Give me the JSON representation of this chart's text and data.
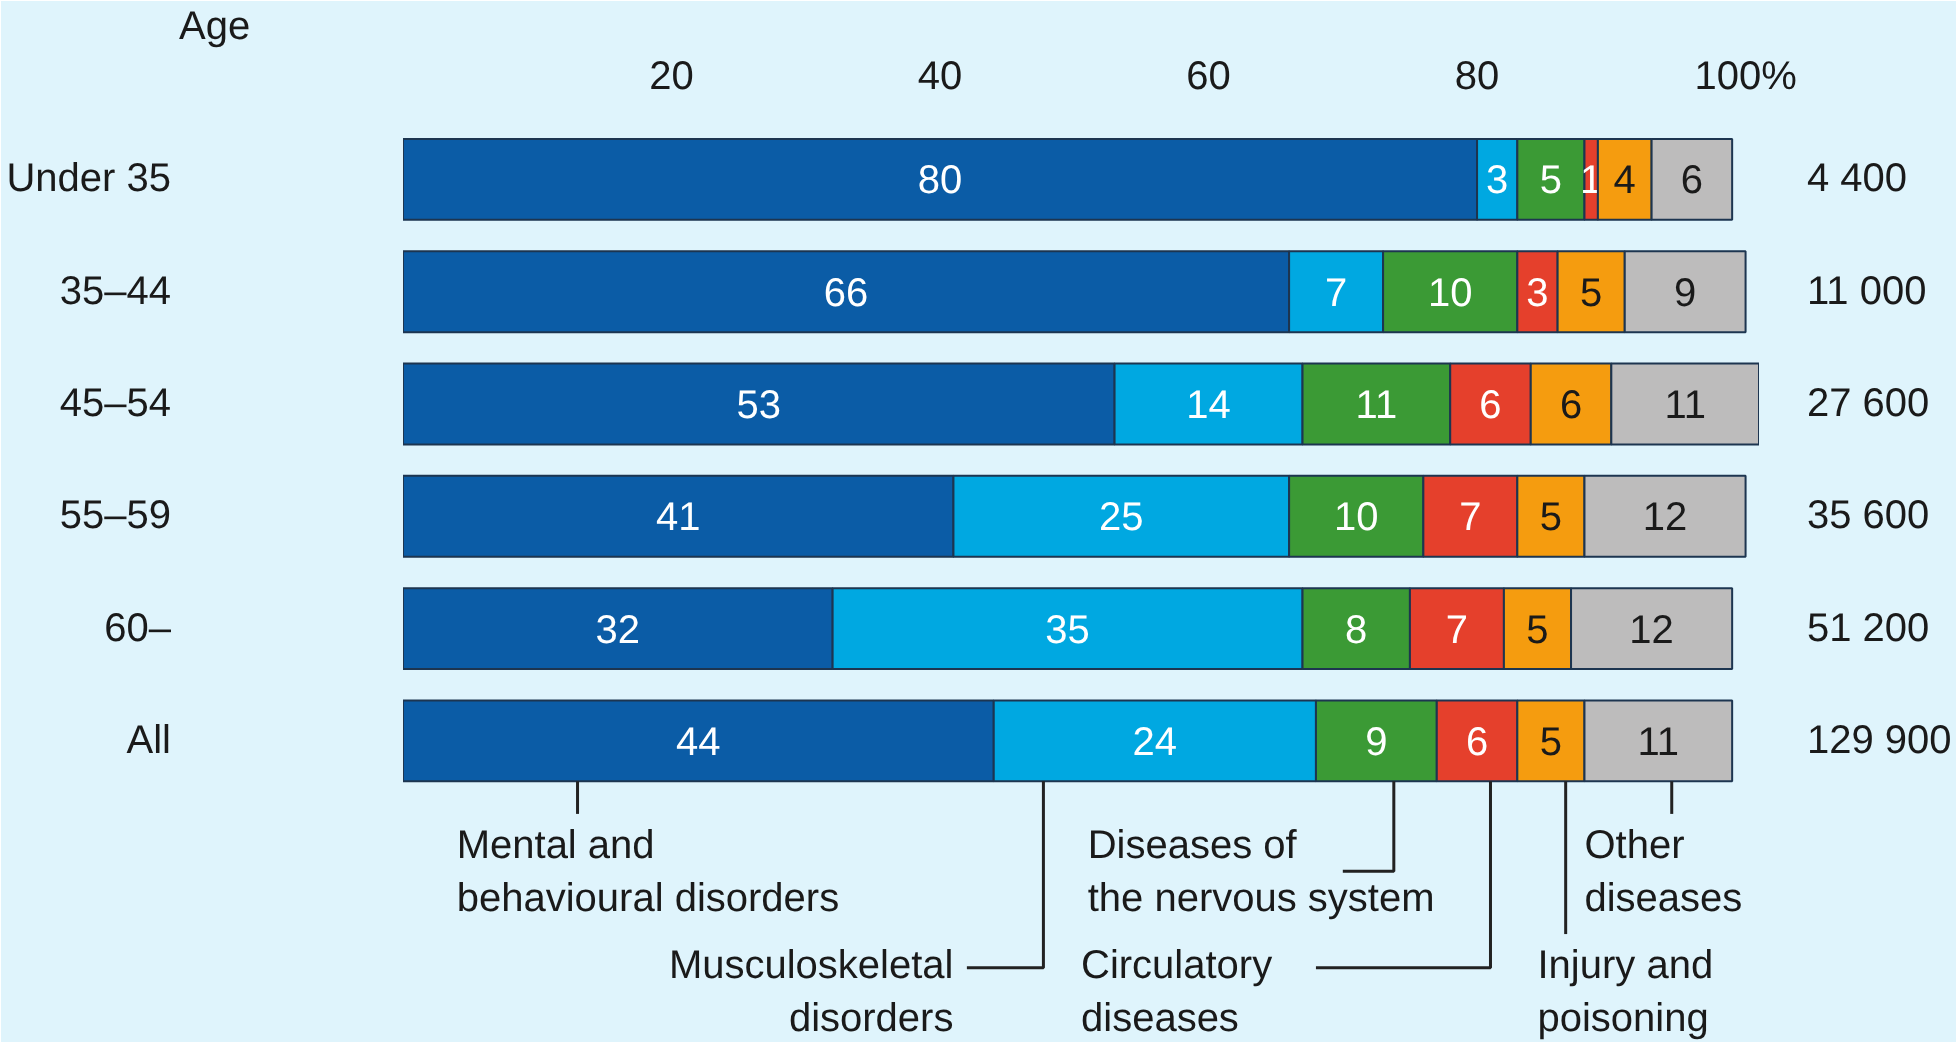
{
  "chart_data": {
    "type": "bar",
    "orientation": "horizontal",
    "stacked": true,
    "ylabel": "Age",
    "categories": [
      "Under 35",
      "35–44",
      "45–54",
      "55–59",
      "60–",
      "All"
    ],
    "series": [
      {
        "name": "Mental and behavioural disorders",
        "color": "#0b5ca6",
        "values": [
          80,
          66,
          53,
          41,
          32,
          44
        ]
      },
      {
        "name": "Musculoskeletal disorders",
        "color": "#00a8e1",
        "values": [
          3,
          7,
          14,
          25,
          35,
          24
        ]
      },
      {
        "name": "Diseases of the nervous system",
        "color": "#3b9a35",
        "values": [
          5,
          10,
          11,
          10,
          8,
          9
        ]
      },
      {
        "name": "Circulatory diseases",
        "color": "#e5402c",
        "values": [
          1,
          3,
          6,
          7,
          7,
          6
        ]
      },
      {
        "name": "Injury and poisoning",
        "color": "#f59c0f",
        "values": [
          4,
          5,
          6,
          5,
          5,
          5
        ]
      },
      {
        "name": "Other diseases",
        "color": "#bdbcbc",
        "values": [
          6,
          9,
          11,
          12,
          12,
          11
        ]
      }
    ],
    "annotations": [
      "4 400",
      "11 000",
      "27 600",
      "35 600",
      "51 200",
      "129 900"
    ],
    "xlim": [
      0,
      101
    ],
    "xticks": [
      20,
      40,
      60,
      80,
      {
        "value": 100,
        "label": "100%"
      }
    ],
    "data_labels": true,
    "legend": "bottom"
  }
}
